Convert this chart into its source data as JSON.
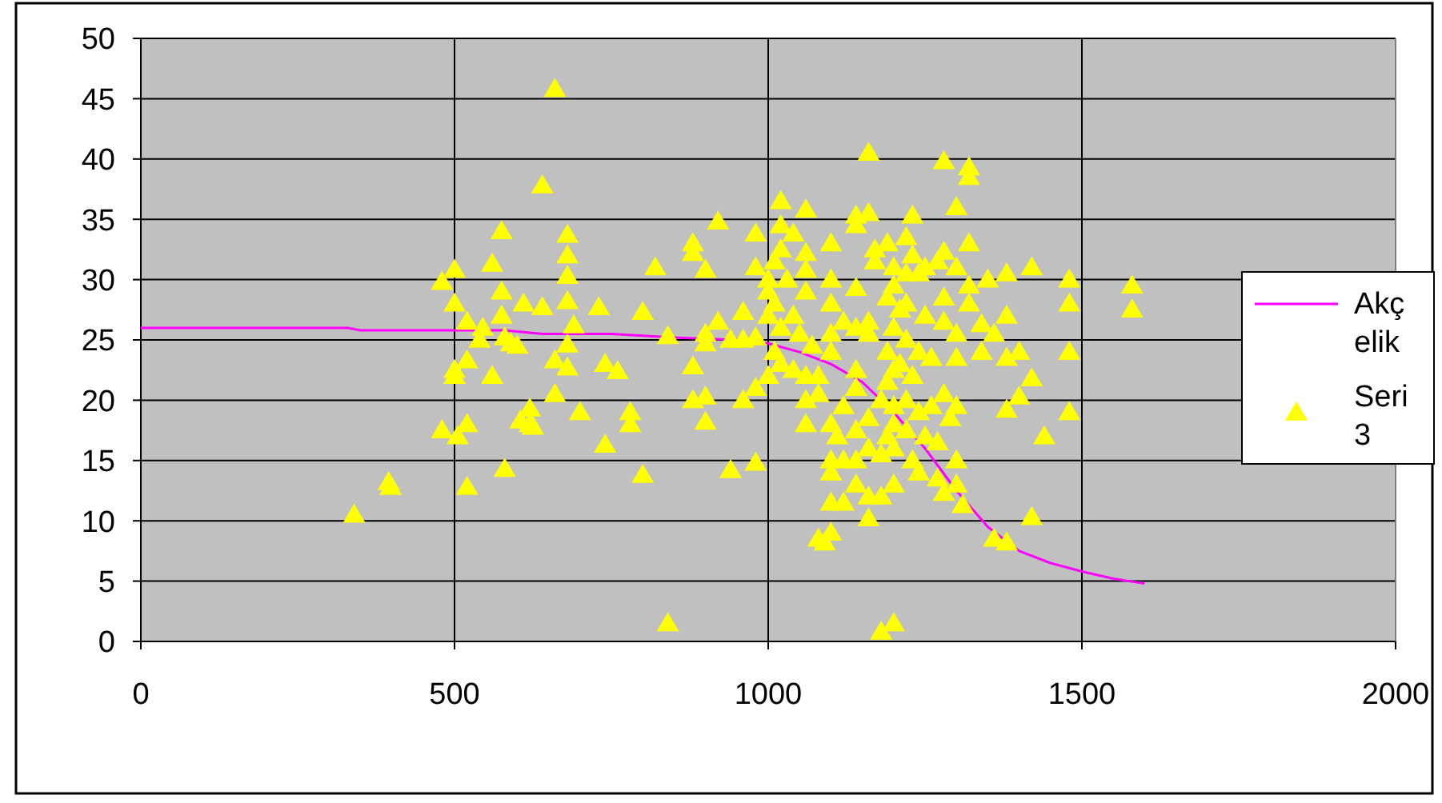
{
  "chart_data": {
    "type": "scatter",
    "xlim": [
      0,
      2000
    ],
    "xticks": [
      0,
      500,
      1000,
      1500,
      2000
    ],
    "ylim": [
      0,
      50
    ],
    "yticks": [
      0,
      5,
      10,
      15,
      20,
      25,
      30,
      35,
      40,
      45,
      50
    ],
    "grid": true,
    "legend": "right",
    "series": [
      {
        "name": "Akçelik",
        "type": "line",
        "color": "#ff00ff",
        "marker": "none",
        "line_style": "solid",
        "x": [
          0,
          330,
          350,
          580,
          640,
          750,
          850,
          950,
          1000,
          1050,
          1100,
          1150,
          1200,
          1250,
          1300,
          1350,
          1400,
          1450,
          1500,
          1550,
          1600
        ],
        "values": [
          26,
          26,
          25.8,
          25.8,
          25.5,
          25.5,
          25.2,
          25,
          24.7,
          24,
          23,
          21.5,
          19,
          16,
          12.5,
          9.5,
          7.5,
          6.5,
          5.8,
          5.2,
          4.8
        ]
      },
      {
        "name": "Seri 3",
        "type": "scatter",
        "color": "#ffff00",
        "marker": "triangle",
        "x": [
          340,
          395,
          398,
          480,
          480,
          500,
          500,
          500,
          500,
          505,
          520,
          520,
          520,
          520,
          540,
          545,
          560,
          560,
          575,
          575,
          575,
          580,
          580,
          590,
          600,
          605,
          610,
          620,
          620,
          625,
          640,
          640,
          660,
          660,
          660,
          680,
          680,
          680,
          680,
          680,
          680,
          690,
          700,
          730,
          740,
          740,
          760,
          780,
          780,
          800,
          800,
          820,
          840,
          840,
          880,
          880,
          880,
          880,
          900,
          900,
          900,
          900,
          900,
          920,
          920,
          940,
          940,
          960,
          960,
          960,
          980,
          980,
          980,
          980,
          980,
          1000,
          1000,
          1000,
          1000,
          1010,
          1010,
          1010,
          1020,
          1020,
          1020,
          1020,
          1020,
          1030,
          1040,
          1040,
          1040,
          1050,
          1060,
          1060,
          1060,
          1060,
          1060,
          1060,
          1060,
          1070,
          1080,
          1080,
          1080,
          1090,
          1100,
          1100,
          1100,
          1100,
          1100,
          1100,
          1100,
          1100,
          1100,
          1100,
          1110,
          1120,
          1120,
          1120,
          1120,
          1140,
          1140,
          1140,
          1140,
          1140,
          1140,
          1140,
          1140,
          1140,
          1160,
          1160,
          1160,
          1160,
          1160,
          1160,
          1160,
          1160,
          1170,
          1170,
          1180,
          1180,
          1180,
          1180,
          1190,
          1190,
          1190,
          1190,
          1190,
          1200,
          1200,
          1200,
          1200,
          1200,
          1200,
          1200,
          1200,
          1200,
          1210,
          1210,
          1220,
          1220,
          1220,
          1220,
          1220,
          1220,
          1230,
          1230,
          1230,
          1230,
          1240,
          1240,
          1240,
          1240,
          1250,
          1250,
          1250,
          1260,
          1260,
          1270,
          1270,
          1270,
          1280,
          1280,
          1280,
          1280,
          1280,
          1280,
          1290,
          1300,
          1300,
          1300,
          1300,
          1300,
          1300,
          1300,
          1310,
          1320,
          1320,
          1320,
          1320,
          1320,
          1340,
          1340,
          1350,
          1360,
          1360,
          1380,
          1380,
          1380,
          1380,
          1380,
          1400,
          1400,
          1420,
          1420,
          1420,
          1440,
          1480,
          1480,
          1480,
          1480,
          1580,
          1580
        ],
        "values": [
          10.5,
          13.2,
          12.8,
          17.5,
          29.8,
          30.8,
          28,
          22.5,
          22,
          17,
          26.5,
          23.3,
          18,
          12.8,
          25,
          26,
          31.3,
          22,
          34,
          29,
          27,
          25.2,
          14.3,
          24.7,
          24.5,
          18.3,
          28,
          19.3,
          18,
          17.8,
          27.7,
          37.8,
          45.8,
          23.3,
          20.5,
          33.7,
          32,
          30.3,
          28.2,
          24.6,
          22.7,
          26.2,
          19,
          27.7,
          16.3,
          23,
          22.4,
          19,
          18,
          27.3,
          13.8,
          31,
          25.3,
          1.5,
          33,
          32.2,
          22.8,
          20,
          30.8,
          25.5,
          24.7,
          20.3,
          18.2,
          34.8,
          26.5,
          25,
          14.2,
          27.3,
          25,
          20,
          33.8,
          31,
          25.2,
          21,
          14.8,
          30,
          29,
          27,
          22,
          31.5,
          28,
          24,
          36.5,
          34.5,
          32.5,
          26,
          23,
          30,
          33.8,
          27,
          22.5,
          25.5,
          35.8,
          32.2,
          30.8,
          29,
          22,
          20,
          18,
          24.5,
          22,
          20.5,
          8.5,
          8.2,
          33,
          30,
          28,
          25.5,
          24,
          18,
          15,
          14,
          11.5,
          9,
          17,
          26.5,
          19.5,
          15,
          11.5,
          35.3,
          34.5,
          29.3,
          26,
          22.5,
          21,
          17.5,
          15,
          13,
          40.5,
          35.5,
          26.5,
          25.5,
          18.5,
          16,
          12,
          10.2,
          32.5,
          31.5,
          20,
          15.5,
          12,
          0.8,
          33,
          28.5,
          24,
          21.5,
          17,
          31,
          29.5,
          26,
          22.5,
          19.5,
          18,
          16,
          13,
          1.5,
          27.5,
          23,
          33.5,
          30.5,
          28,
          25,
          20,
          17.5,
          35.3,
          32,
          22,
          15,
          30.5,
          24,
          19,
          14,
          31,
          27,
          17,
          23.5,
          19.5,
          31.5,
          16.5,
          13.5,
          39.8,
          32.3,
          28.5,
          26.5,
          20.5,
          12.3,
          18.5,
          36,
          31,
          25.5,
          23.5,
          19.5,
          15,
          13,
          11.3,
          39.3,
          38.5,
          33,
          29.5,
          28,
          26.3,
          24,
          30,
          25.5,
          8.5,
          30.5,
          27,
          23.5,
          19.2,
          8.2,
          20.3,
          24,
          31,
          21.8,
          10.3,
          17,
          30,
          28,
          24,
          19,
          29.5,
          27.5
        ]
      }
    ]
  }
}
